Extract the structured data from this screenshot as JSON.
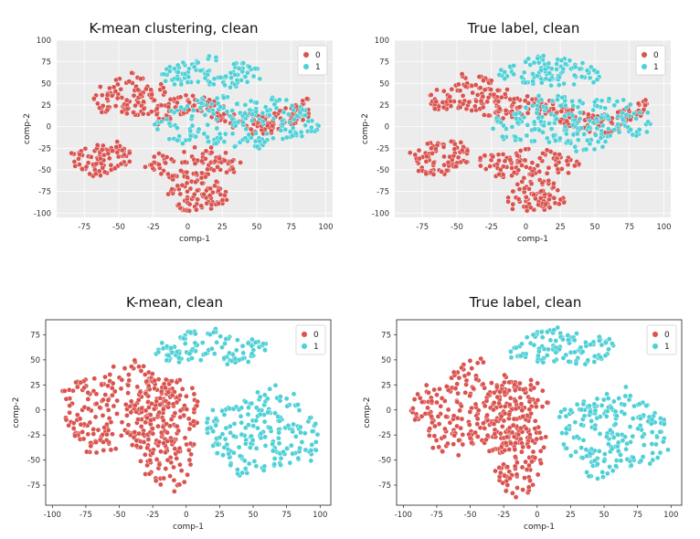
{
  "colors": {
    "cluster_0": "#d9534f",
    "cluster_1": "#4fd0d6",
    "plot_bg": "#ececec",
    "grid": "#ffffff"
  },
  "chart_data": [
    {
      "type": "scatter",
      "title": "K-mean clustering, clean",
      "xlabel": "comp-1",
      "ylabel": "comp-2",
      "xlim": [
        -95,
        105
      ],
      "ylim": [
        -105,
        100
      ],
      "xticks": [
        -75,
        -50,
        -25,
        0,
        25,
        50,
        75,
        100
      ],
      "yticks": [
        100,
        75,
        50,
        25,
        0,
        -25,
        -50,
        -75,
        -100
      ],
      "grid": true,
      "legend": "top-right",
      "series": [
        {
          "name": "0",
          "color": "#d9534f",
          "regions": [
            {
              "x": [
                -22,
                88
              ],
              "y": [
                -12,
                40
              ],
              "shape": "band"
            },
            {
              "x": [
                -70,
                -10
              ],
              "y": [
                10,
                60
              ],
              "shape": "blob"
            },
            {
              "x": [
                -85,
                -40
              ],
              "y": [
                -55,
                -15
              ],
              "shape": "blob"
            },
            {
              "x": [
                -35,
                40
              ],
              "y": [
                -60,
                -25
              ],
              "shape": "blob"
            },
            {
              "x": [
                -15,
                30
              ],
              "y": [
                -100,
                -60
              ],
              "shape": "blob"
            }
          ]
        },
        {
          "name": "1",
          "color": "#4fd0d6",
          "regions": [
            {
              "x": [
                -20,
                55
              ],
              "y": [
                45,
                80
              ],
              "shape": "blob"
            },
            {
              "x": [
                -25,
                95
              ],
              "y": [
                -25,
                35
              ],
              "shape": "blob"
            }
          ]
        }
      ]
    },
    {
      "type": "scatter",
      "title": "True label, clean",
      "xlabel": "comp-1",
      "ylabel": "comp-2",
      "xlim": [
        -95,
        105
      ],
      "ylim": [
        -105,
        100
      ],
      "xticks": [
        -75,
        -50,
        -25,
        0,
        25,
        50,
        75,
        100
      ],
      "yticks": [
        100,
        75,
        50,
        25,
        0,
        -25,
        -50,
        -75,
        -100
      ],
      "grid": true,
      "legend": "top-right",
      "series": [
        {
          "name": "0",
          "color": "#d9534f",
          "regions": [
            {
              "x": [
                -22,
                88
              ],
              "y": [
                -12,
                40
              ],
              "shape": "band"
            },
            {
              "x": [
                -70,
                -10
              ],
              "y": [
                10,
                60
              ],
              "shape": "blob"
            },
            {
              "x": [
                -85,
                -40
              ],
              "y": [
                -55,
                -15
              ],
              "shape": "blob"
            },
            {
              "x": [
                -35,
                40
              ],
              "y": [
                -60,
                -25
              ],
              "shape": "blob"
            },
            {
              "x": [
                -15,
                30
              ],
              "y": [
                -100,
                -60
              ],
              "shape": "blob"
            }
          ]
        },
        {
          "name": "1",
          "color": "#4fd0d6",
          "regions": [
            {
              "x": [
                -20,
                55
              ],
              "y": [
                45,
                80
              ],
              "shape": "blob"
            },
            {
              "x": [
                -25,
                95
              ],
              "y": [
                -25,
                35
              ],
              "shape": "blob"
            }
          ]
        }
      ]
    },
    {
      "type": "scatter",
      "title": "K-mean, clean",
      "xlabel": "comp-1",
      "ylabel": "comp-2",
      "xlim": [
        -105,
        108
      ],
      "ylim": [
        -95,
        90
      ],
      "xticks": [
        -100,
        -75,
        -50,
        -25,
        0,
        25,
        50,
        75,
        100
      ],
      "yticks": [
        75,
        50,
        25,
        0,
        -25,
        -50,
        -75
      ],
      "grid": false,
      "legend": "top-right",
      "series": [
        {
          "name": "0",
          "color": "#d9534f",
          "regions": [
            {
              "x": [
                -95,
                0
              ],
              "y": [
                -45,
                45
              ],
              "shape": "blob"
            },
            {
              "x": [
                -40,
                10
              ],
              "y": [
                -80,
                40
              ],
              "shape": "blob"
            }
          ]
        },
        {
          "name": "1",
          "color": "#4fd0d6",
          "regions": [
            {
              "x": [
                -25,
                60
              ],
              "y": [
                45,
                80
              ],
              "shape": "blob"
            },
            {
              "x": [
                15,
                100
              ],
              "y": [
                -65,
                20
              ],
              "shape": "blob"
            }
          ]
        }
      ]
    },
    {
      "type": "scatter",
      "title": "True label, clean",
      "xlabel": "comp-1",
      "ylabel": "comp-2",
      "xlim": [
        -105,
        108
      ],
      "ylim": [
        -95,
        90
      ],
      "xticks": [
        -100,
        -75,
        -50,
        -25,
        0,
        25,
        50,
        75,
        100
      ],
      "yticks": [
        75,
        50,
        25,
        0,
        -25,
        -50,
        -75
      ],
      "grid": false,
      "legend": "top-right",
      "series": [
        {
          "name": "0",
          "color": "#d9534f",
          "regions": [
            {
              "x": [
                -95,
                0
              ],
              "y": [
                -45,
                45
              ],
              "shape": "blob"
            },
            {
              "x": [
                -40,
                10
              ],
              "y": [
                -80,
                40
              ],
              "shape": "blob"
            }
          ]
        },
        {
          "name": "1",
          "color": "#4fd0d6",
          "regions": [
            {
              "x": [
                -25,
                60
              ],
              "y": [
                45,
                80
              ],
              "shape": "blob"
            },
            {
              "x": [
                15,
                100
              ],
              "y": [
                -65,
                20
              ],
              "shape": "blob"
            }
          ]
        }
      ]
    }
  ]
}
